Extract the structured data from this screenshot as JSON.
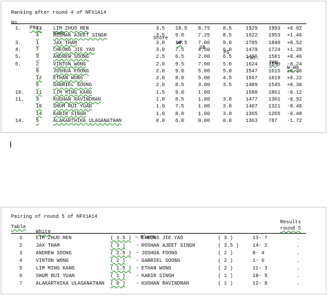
{
  "ranking": {
    "title": "Ranking after round 4 of NFX1A14",
    "headers": {
      "no": "No.",
      "pno": "PNo.",
      "name": "Name",
      "score": "Score",
      "wp": "WP",
      "sb": "SB",
      "ps": "PS",
      "rat": "rat.",
      "tpr": "TPR",
      "wwe": "W-We"
    },
    "rows": [
      {
        "no": "1.",
        "pno": "13",
        "name": "LIM ZHUO REN",
        "score": "3.5",
        "wp": "10.5",
        "sb": "8.75",
        "ps": "8.5",
        "rat": "1929",
        "tpr": "1993",
        "wwe": "+0.02"
      },
      {
        "no": "",
        "pno": "4",
        "name": "ROSHAN AJEET SINGH",
        "score": "3.5",
        "wp": "9.0",
        "sb": "7.25",
        "ps": "8.5",
        "rat": "1622",
        "tpr": "1953",
        "wwe": "+1.46"
      },
      {
        "no": "3.",
        "pno": "1",
        "name": "JAX THAM",
        "score": "3.0",
        "wp": "10.5",
        "sb": "7.00",
        "ps": "9.0",
        "rat": "1785",
        "tpr": "1840",
        "wwe": "+0.52"
      },
      {
        "no": "4.",
        "pno": "7",
        "name": "CHEONG JIE YAO",
        "score": "3.0",
        "wp": "7.5",
        "sb": "4.50",
        "ps": "6.0",
        "rat": "1479",
        "tpr": "1724",
        "wwe": "+1.28"
      },
      {
        "no": "5.",
        "pno": "3",
        "name": "ANDREW SOONG",
        "score": "2.5",
        "wp": "6.5",
        "sb": "2.00",
        "ps": "6.5",
        "rat": "1496",
        "tpr": "1581",
        "wwe": "+0.46"
      },
      {
        "no": "6.",
        "pno": "2",
        "name": "VINTON WONG",
        "score": "2.0",
        "wp": "9.5",
        "sb": "7.00",
        "ps": "5.0",
        "rat": "1624",
        "tpr": "1590",
        "wwe": "-0.24"
      },
      {
        "no": "",
        "pno": "8",
        "name": "JOSHUA FOONG",
        "score": "2.0",
        "wp": "9.0",
        "sb": "5.00",
        "ps": "5.0",
        "rat": "1547",
        "tpr": "1615",
        "wwe": "+0.36"
      },
      {
        "no": "",
        "pno": "12",
        "name": "ETHAN WONG",
        "score": "2.0",
        "wp": "8.0",
        "sb": "5.00",
        "ps": "4.5",
        "rat": "1567",
        "tpr": "1619",
        "wwe": "+0.22"
      },
      {
        "no": "",
        "pno": "6",
        "name": "GABRIEL SOONG",
        "score": "2.0",
        "wp": "8.5",
        "sb": "3.00",
        "ps": "3.5",
        "rat": "1489",
        "tpr": "1545",
        "wwe": "+0.36"
      },
      {
        "no": "10.",
        "pno": "11",
        "name": "LIM MING KANG",
        "score": "1.5",
        "wp": "9.0",
        "sb": "1.00",
        "ps": "",
        "rat": "1588",
        "tpr": "1861",
        "wwe": "-0.12"
      },
      {
        "no": "11.",
        "pno": "9",
        "name": "KUGHAN RAVINDRAN",
        "score": "1.0",
        "wp": "8.5",
        "sb": "1.00",
        "ps": "3.0",
        "rat": "1477",
        "tpr": "1301",
        "wwe": "-0.92"
      },
      {
        "no": "",
        "pno": "10",
        "name": "SHUM RUI YUAN",
        "score": "1.0",
        "wp": "7.5",
        "sb": "1.00",
        "ps": "3.0",
        "rat": "1407",
        "tpr": "1321",
        "wwe": "-0.46"
      },
      {
        "no": "",
        "pno": "14",
        "name": "KABIR SINGH",
        "score": "1.0",
        "wp": "8.0",
        "sb": "1.00",
        "ps": "3.0",
        "rat": "1365",
        "tpr": "1265",
        "wwe": "-0.48"
      },
      {
        "no": "14.",
        "pno": "5",
        "name": "ALAKARTHIKA ULAGANATHAN",
        "score": "0.0",
        "wp": "6.0",
        "sb": "0.00",
        "ps": "0.0",
        "rat": "1363",
        "tpr": "787",
        "wwe": "-1.72"
      }
    ]
  },
  "pairing": {
    "title": "Pairing of round 5 of NFX1A14",
    "headers": {
      "table": "Table",
      "white": "White",
      "black": "- Black",
      "results": "Results",
      "round": "round 5"
    },
    "rows": [
      {
        "table": "1",
        "white": "LIM ZHUO REN",
        "wpts": "( 3.5 )",
        "black": "CHEONG JIE YAO",
        "bpts": "( 3 )",
        "pnos": "13- 7",
        "result": "."
      },
      {
        "table": "2",
        "white": "JAX THAM",
        "wpts": "( 3 )",
        "black": "ROSHAN AJEET SINGH",
        "bpts": "( 3.5 )",
        "pnos": "14- 2",
        "result": "."
      },
      {
        "table": "3",
        "white": "ANDREW SOONG",
        "wpts": "( 2.5 )",
        "black": "JOSHUA FOONG",
        "bpts": "( 2 )",
        "pnos": "8- 4",
        "result": "."
      },
      {
        "table": "4",
        "white": "VINTON WONG",
        "wpts": "( 2 )",
        "black": "GABRIEL SOONG",
        "bpts": "( 2 )",
        "pnos": "1- 6",
        "result": "."
      },
      {
        "table": "5",
        "white": "LIM MING KANG",
        "wpts": "( 1.5 )",
        "black": "ETHAN WONG",
        "bpts": "( 2 )",
        "pnos": "11- 3",
        "result": "."
      },
      {
        "table": "6",
        "white": "SHUM RUI YUAN",
        "wpts": "( 1 )",
        "black": "KABIR SINGH",
        "bpts": "( 1 )",
        "pnos": "10- 5",
        "result": "."
      },
      {
        "table": "7",
        "white": "ALAKARTHIKA ULAGANATHAN",
        "wpts": "( 0 )",
        "black": "KUGHAN RAVINDRAN",
        "bpts": "( 1 )",
        "pnos": "12- 8",
        "result": "."
      }
    ]
  }
}
